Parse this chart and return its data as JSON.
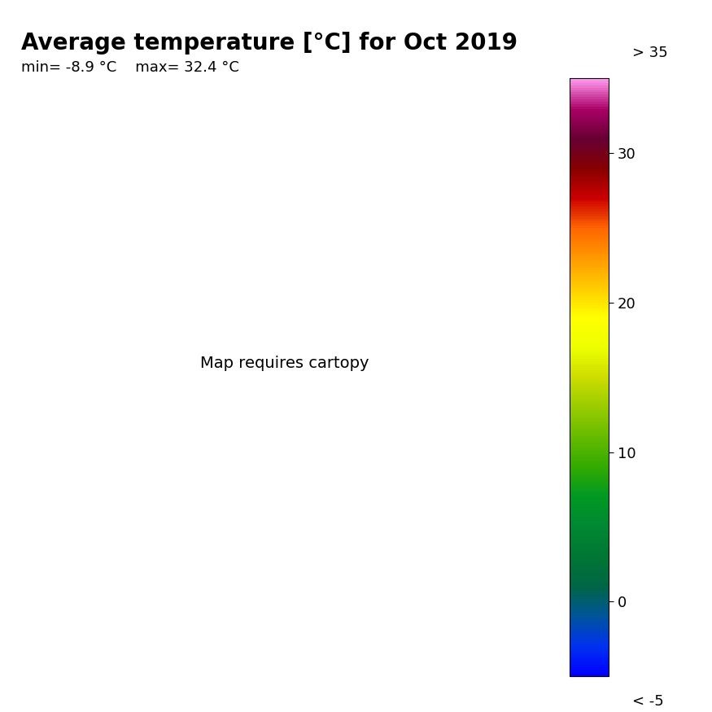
{
  "title": "Average temperature [°C] for Oct 2019",
  "min_label": "min= -8.9 °C",
  "max_label": "max= 32.4 °C",
  "colorbar_ticks": [
    0,
    10,
    20,
    30
  ],
  "colorbar_label_above": "> 35",
  "colorbar_label_below": "< -5",
  "title_fontsize": 20,
  "subtitle_fontsize": 13,
  "colorbar_tick_fontsize": 13,
  "colorbar_label_fontsize": 13,
  "background_color": "#ffffff",
  "colorbar_colors": [
    "#0000FF",
    "#0022FF",
    "#0055FF",
    "#0088FF",
    "#00AAFF",
    "#00DDFF",
    "#00FFCC",
    "#00FF88",
    "#00FF44",
    "#44FF00",
    "#88FF00",
    "#CCFF00",
    "#FFFF00",
    "#FFDD00",
    "#FFBB00",
    "#FF9900",
    "#FF7700",
    "#FF5500",
    "#CC0000",
    "#990000",
    "#770077",
    "#AA00AA",
    "#DD44DD",
    "#FF88FF"
  ],
  "colorbar_vmin": -5,
  "colorbar_vmax": 35,
  "map_extent": [
    -25,
    45,
    25,
    72
  ]
}
